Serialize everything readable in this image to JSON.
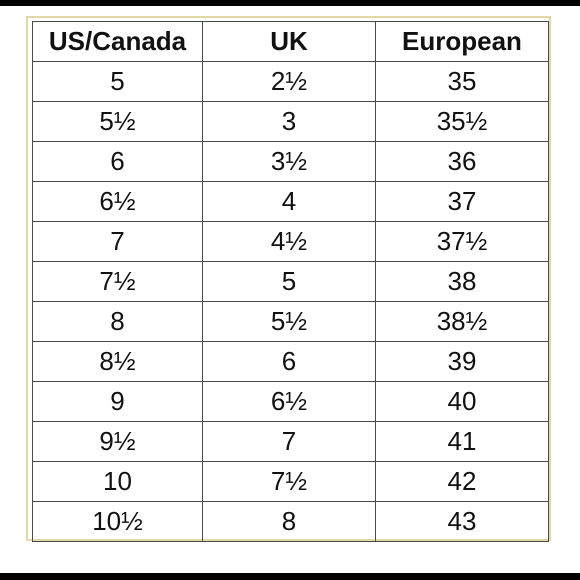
{
  "colors": {
    "frame_border": "#e0d9a6",
    "grid_lines": "#4a4a4a",
    "text": "#111111",
    "edge_bars": "#000000"
  },
  "table": {
    "headers": [
      "US/Canada",
      "UK",
      "European"
    ],
    "rows": [
      [
        "5",
        "2½",
        "35"
      ],
      [
        "5½",
        "3",
        "35½"
      ],
      [
        "6",
        "3½",
        "36"
      ],
      [
        "6½",
        "4",
        "37"
      ],
      [
        "7",
        "4½",
        "37½"
      ],
      [
        "7½",
        "5",
        "38"
      ],
      [
        "8",
        "5½",
        "38½"
      ],
      [
        "8½",
        "6",
        "39"
      ],
      [
        "9",
        "6½",
        "40"
      ],
      [
        "9½",
        "7",
        "41"
      ],
      [
        "10",
        "7½",
        "42"
      ],
      [
        "10½",
        "8",
        "43"
      ]
    ]
  }
}
